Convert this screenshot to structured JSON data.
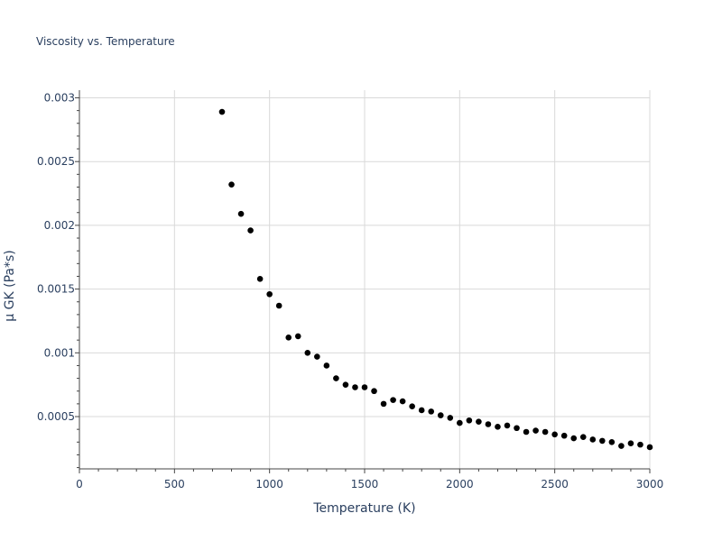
{
  "chart_data": {
    "type": "scatter",
    "title": "Viscosity vs. Temperature",
    "xlabel": "Temperature (K)",
    "ylabel": "μ GK (Pa*s)",
    "xlim": [
      0,
      3000
    ],
    "ylim": [
      9e-05,
      0.00306
    ],
    "xticks": [
      0,
      500,
      1000,
      1500,
      2000,
      2500,
      3000
    ],
    "xtick_labels": [
      "0",
      "500",
      "1000",
      "1500",
      "2000",
      "2500",
      "3000"
    ],
    "yticks": [
      0.0005,
      0.001,
      0.0015,
      0.002,
      0.0025,
      0.003
    ],
    "ytick_labels": [
      "0.0005",
      "0.001",
      "0.0015",
      "0.002",
      "0.0025",
      "0.003"
    ],
    "grid": true,
    "marker_color": "#000000",
    "x": [
      750,
      800,
      850,
      900,
      950,
      1000,
      1050,
      1100,
      1150,
      1200,
      1250,
      1300,
      1350,
      1400,
      1450,
      1500,
      1550,
      1600,
      1650,
      1700,
      1750,
      1800,
      1850,
      1900,
      1950,
      2000,
      2050,
      2100,
      2150,
      2200,
      2250,
      2300,
      2350,
      2400,
      2450,
      2500,
      2550,
      2600,
      2650,
      2700,
      2750,
      2800,
      2850,
      2900,
      2950,
      3000
    ],
    "y": [
      0.00289,
      0.00232,
      0.00209,
      0.00196,
      0.00158,
      0.00146,
      0.00137,
      0.00112,
      0.00113,
      0.001,
      0.00097,
      0.0009,
      0.0008,
      0.00075,
      0.00073,
      0.00073,
      0.0007,
      0.0006,
      0.00063,
      0.00062,
      0.00058,
      0.00055,
      0.00054,
      0.00051,
      0.00049,
      0.00045,
      0.00047,
      0.00046,
      0.00044,
      0.00042,
      0.00043,
      0.00041,
      0.00038,
      0.00039,
      0.00038,
      0.00036,
      0.00035,
      0.00033,
      0.00034,
      0.00032,
      0.00031,
      0.0003,
      0.00027,
      0.00029,
      0.00028,
      0.00026
    ]
  }
}
